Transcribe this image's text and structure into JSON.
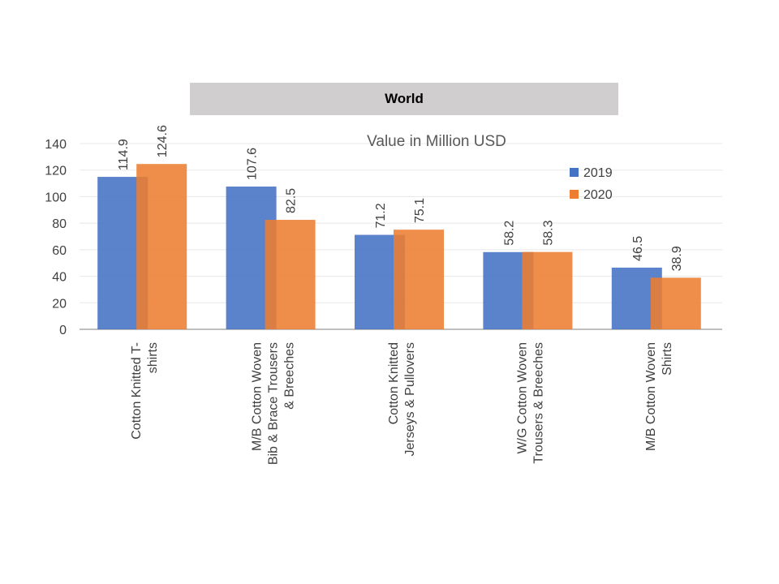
{
  "header": {
    "title": "World"
  },
  "chart_data": {
    "type": "bar",
    "title": "World",
    "subtitle": "Value in Million USD",
    "xlabel": "",
    "ylabel": "",
    "ylim": [
      0,
      140
    ],
    "yticks": [
      0,
      20,
      40,
      60,
      80,
      100,
      120,
      140
    ],
    "grid": true,
    "legend_position": "right",
    "categories": [
      [
        "Cotton Knitted  T-",
        "shirts"
      ],
      [
        "M/B Cotton Woven",
        "Bib & Brace Trousers",
        "& Breeches"
      ],
      [
        "Cotton Knitted",
        "Jerseys & Pullovers"
      ],
      [
        "W/G Cotton Woven",
        "Trousers & Breeches"
      ],
      [
        "M/B Cotton Woven",
        "Shirts"
      ]
    ],
    "series": [
      {
        "name": "2019",
        "color": "#4472c4",
        "values": [
          114.9,
          107.6,
          71.2,
          58.2,
          46.5
        ]
      },
      {
        "name": "2020",
        "color": "#ed7d31",
        "values": [
          124.6,
          82.5,
          75.1,
          58.3,
          38.9
        ]
      }
    ]
  }
}
